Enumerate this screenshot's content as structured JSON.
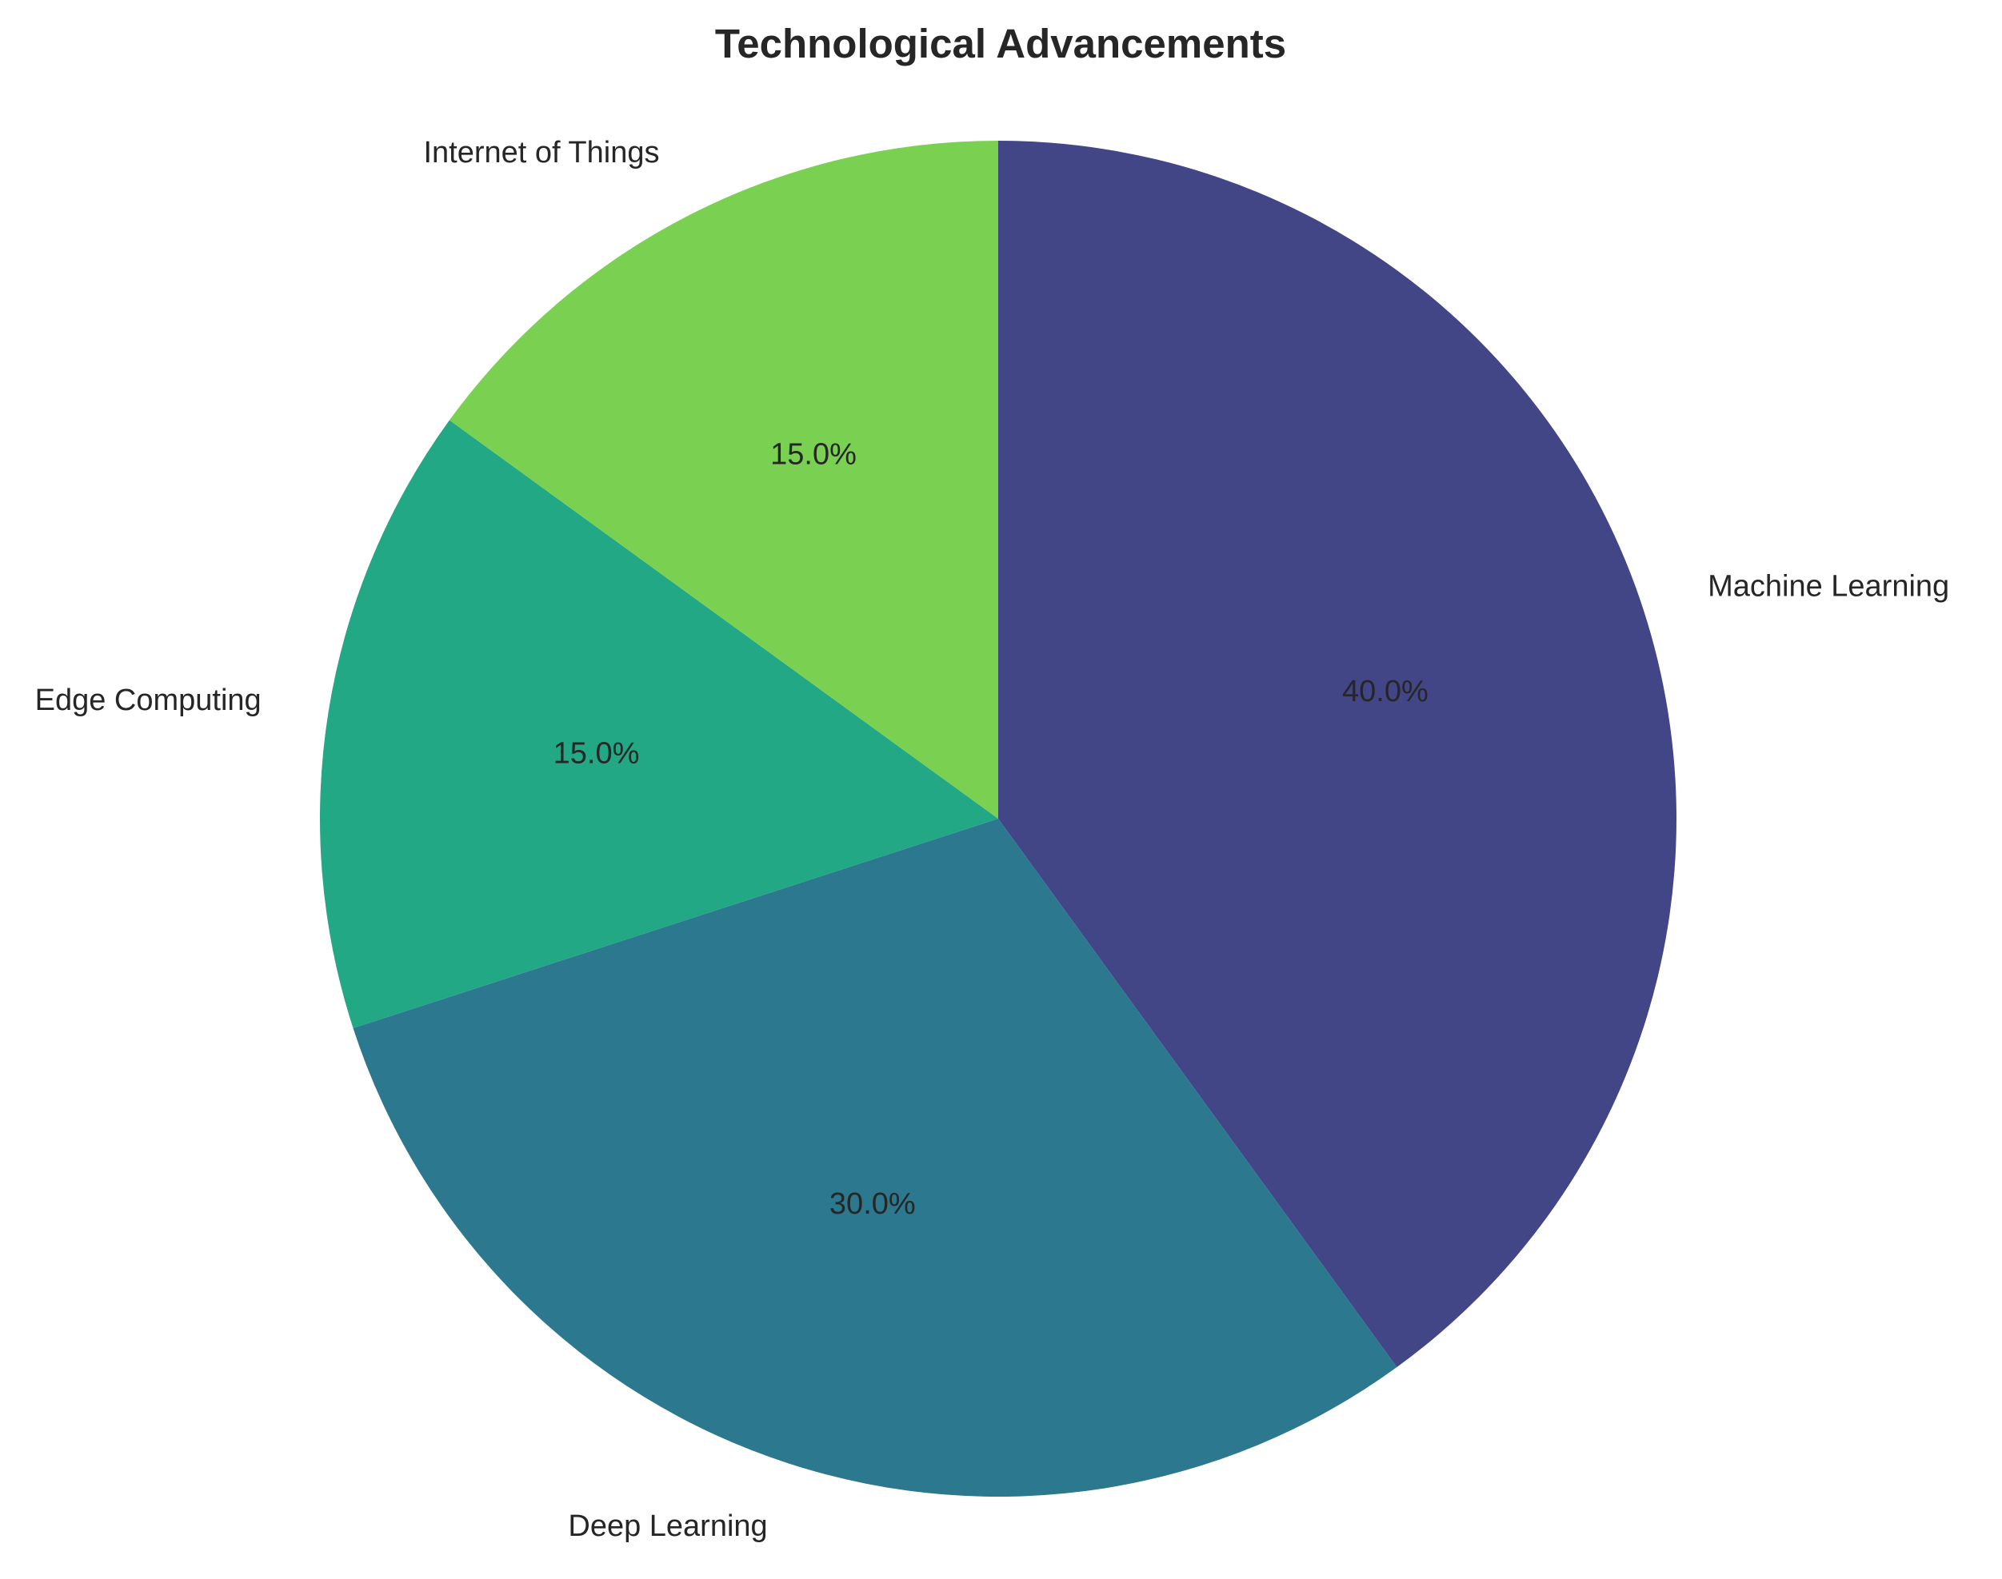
{
  "chart_data": {
    "type": "pie",
    "title": "Technological Advancements",
    "start_angle_deg": 90,
    "direction": "clockwise",
    "slices": [
      {
        "label": "Machine Learning",
        "value": 40.0,
        "pct_text": "40.0%",
        "color": "#424686"
      },
      {
        "label": "Deep Learning",
        "value": 30.0,
        "pct_text": "30.0%",
        "color": "#2C788E"
      },
      {
        "label": "Edge Computing",
        "value": 15.0,
        "pct_text": "15.0%",
        "color": "#22A884"
      },
      {
        "label": "Internet of Things",
        "value": 15.0,
        "pct_text": "15.0%",
        "color": "#7AD151"
      }
    ]
  }
}
